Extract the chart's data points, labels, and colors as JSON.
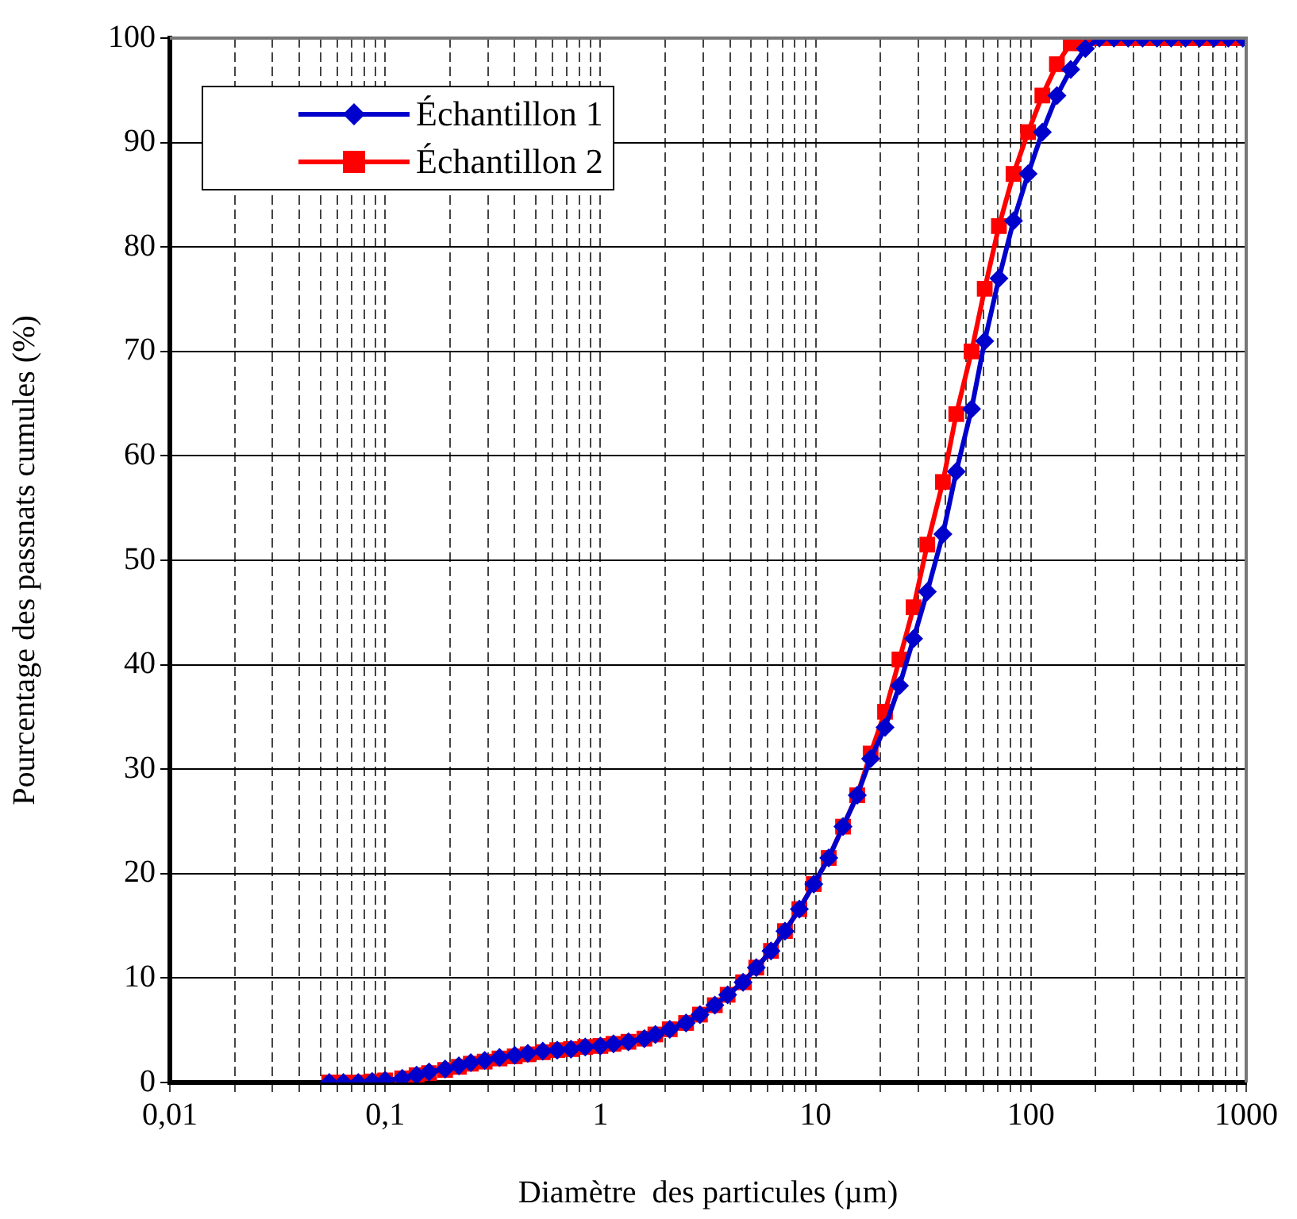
{
  "chart_data": {
    "type": "line",
    "xlabel": "Diamètre  des particules (µm)",
    "ylabel": "Pourcentage des passnats cumules (%)",
    "log": "x",
    "grid": true,
    "legend": "top left",
    "line_style": "solid",
    "xlim": [
      0.01,
      1000
    ],
    "ylim": [
      0,
      100
    ],
    "xticks": [
      {
        "value": 0.01,
        "label": "0,01"
      },
      {
        "value": 0.02,
        "label": null
      },
      {
        "value": 0.03,
        "label": null
      },
      {
        "value": 0.04,
        "label": null
      },
      {
        "value": 0.05,
        "label": null
      },
      {
        "value": 0.06,
        "label": null
      },
      {
        "value": 0.07,
        "label": null
      },
      {
        "value": 0.08,
        "label": null
      },
      {
        "value": 0.09,
        "label": null
      },
      {
        "value": 0.1,
        "label": "0,1"
      },
      {
        "value": 0.2,
        "label": null
      },
      {
        "value": 0.3,
        "label": null
      },
      {
        "value": 0.4,
        "label": null
      },
      {
        "value": 0.5,
        "label": null
      },
      {
        "value": 0.6,
        "label": null
      },
      {
        "value": 0.7,
        "label": null
      },
      {
        "value": 0.8,
        "label": null
      },
      {
        "value": 0.9,
        "label": null
      },
      1,
      {
        "value": 2,
        "label": null
      },
      {
        "value": 3,
        "label": null
      },
      {
        "value": 4,
        "label": null
      },
      {
        "value": 5,
        "label": null
      },
      {
        "value": 6,
        "label": null
      },
      {
        "value": 7,
        "label": null
      },
      {
        "value": 8,
        "label": null
      },
      {
        "value": 9,
        "label": null
      },
      10,
      {
        "value": 20,
        "label": null
      },
      {
        "value": 30,
        "label": null
      },
      {
        "value": 40,
        "label": null
      },
      {
        "value": 50,
        "label": null
      },
      {
        "value": 60,
        "label": null
      },
      {
        "value": 70,
        "label": null
      },
      {
        "value": 80,
        "label": null
      },
      {
        "value": 90,
        "label": null
      },
      100,
      {
        "value": 200,
        "label": null
      },
      {
        "value": 300,
        "label": null
      },
      {
        "value": 400,
        "label": null
      },
      {
        "value": 500,
        "label": null
      },
      {
        "value": 600,
        "label": null
      },
      {
        "value": 700,
        "label": null
      },
      {
        "value": 800,
        "label": null
      },
      {
        "value": 900,
        "label": null
      },
      1000
    ],
    "yticks": [
      0,
      10,
      20,
      30,
      40,
      50,
      60,
      70,
      80,
      90,
      100
    ],
    "x": [
      0.055,
      0.064,
      0.075,
      0.087,
      0.1,
      0.12,
      0.14,
      0.16,
      0.19,
      0.22,
      0.25,
      0.29,
      0.34,
      0.4,
      0.46,
      0.54,
      0.63,
      0.73,
      0.85,
      1,
      1.15,
      1.35,
      1.6,
      1.8,
      2.1,
      2.5,
      2.9,
      3.4,
      3.9,
      4.6,
      5.3,
      6.2,
      7.2,
      8.4,
      9.8,
      11.5,
      13.4,
      15.6,
      18,
      21,
      24.5,
      28.5,
      33,
      39,
      45,
      53,
      61,
      71,
      83,
      97,
      113,
      132,
      153,
      179,
      208,
      243,
      283,
      330,
      385,
      448,
      522,
      608,
      709,
      826,
      964
    ],
    "series": [
      {
        "name": "Échantillon 1",
        "color": "#0000cc",
        "marker": "diamond",
        "values": [
          0,
          0,
          0,
          0.1,
          0.2,
          0.4,
          0.7,
          1.0,
          1.3,
          1.6,
          1.9,
          2.1,
          2.4,
          2.6,
          2.8,
          3.0,
          3.1,
          3.2,
          3.4,
          3.5,
          3.7,
          3.9,
          4.2,
          4.6,
          5.1,
          5.7,
          6.5,
          7.4,
          8.4,
          9.6,
          11,
          12.6,
          14.5,
          16.6,
          19,
          21.5,
          24.5,
          27.5,
          31,
          34,
          38,
          42.5,
          47,
          52.5,
          58.5,
          64.5,
          71,
          77,
          82.5,
          87,
          91,
          94.5,
          97,
          99,
          100,
          100,
          100,
          100,
          100,
          100,
          100,
          100,
          100,
          100,
          100
        ]
      },
      {
        "name": "Échantillon 2",
        "color": "#ff0000",
        "marker": "square",
        "values": [
          0,
          0,
          0,
          0.1,
          0.2,
          0.4,
          0.7,
          0.9,
          1.2,
          1.5,
          1.8,
          2.0,
          2.3,
          2.5,
          2.7,
          2.9,
          3.1,
          3.2,
          3.4,
          3.5,
          3.7,
          3.9,
          4.2,
          4.6,
          5.1,
          5.7,
          6.5,
          7.4,
          8.4,
          9.6,
          11,
          12.6,
          14.5,
          16.6,
          19,
          21.5,
          24.5,
          27.5,
          31.5,
          35.5,
          40.5,
          45.5,
          51.5,
          57.5,
          64,
          70,
          76,
          82,
          87,
          91,
          94.5,
          97.5,
          99.5,
          100,
          100,
          100,
          100,
          100,
          100,
          100,
          100,
          100,
          100,
          100,
          100
        ]
      }
    ]
  }
}
